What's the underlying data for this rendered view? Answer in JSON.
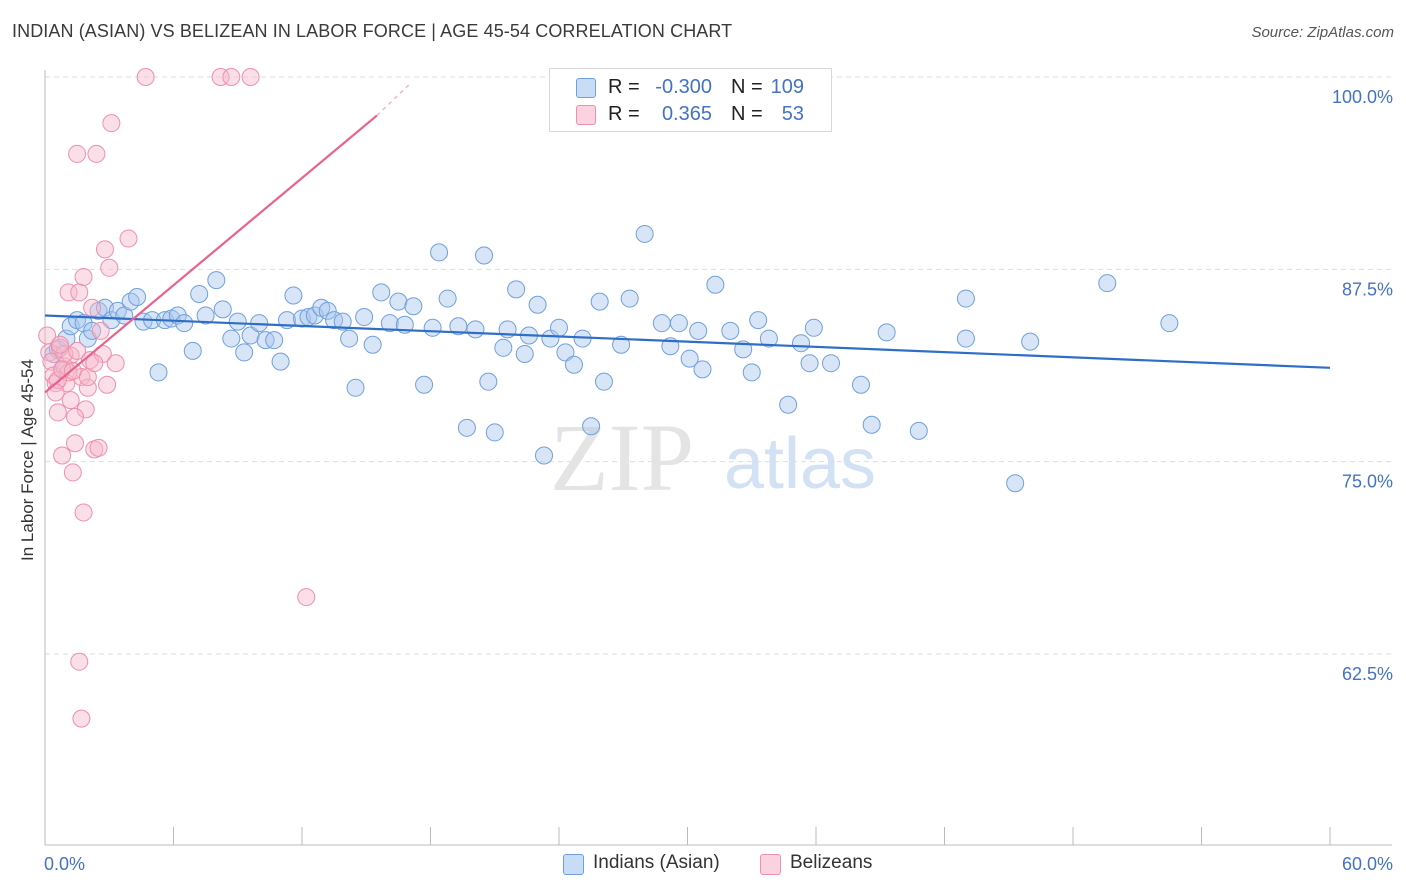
{
  "title": "INDIAN (ASIAN) VS BELIZEAN IN LABOR FORCE | AGE 45-54 CORRELATION CHART",
  "source": "Source: ZipAtlas.com",
  "watermark": {
    "zip": "ZIP",
    "atlas": "atlas"
  },
  "legend": {
    "rows": [
      {
        "r_label": "R =",
        "r_value": "-0.300",
        "n_label": "N =",
        "n_value": "109",
        "color": "#a9c6ee"
      },
      {
        "r_label": "R =",
        "r_value": "0.365",
        "n_label": "N =",
        "n_value": "53",
        "color": "#f6b8cb"
      }
    ]
  },
  "bottom_legend": [
    {
      "label": "Indians (Asian)",
      "color": "#a9c6ee"
    },
    {
      "label": "Belizeans",
      "color": "#f6b8cb"
    }
  ],
  "chart_data": {
    "type": "scatter",
    "title": "INDIAN (ASIAN) VS BELIZEAN IN LABOR FORCE | AGE 45-54 CORRELATION CHART",
    "xlabel": "",
    "ylabel": "In Labor Force | Age 45-54",
    "xlim": [
      0,
      60
    ],
    "ylim": [
      50,
      101
    ],
    "x_tick_labels": [
      "0.0%",
      "60.0%"
    ],
    "y_ticks": [
      62.5,
      75.0,
      87.5,
      100.0
    ],
    "y_tick_labels": [
      "62.5%",
      "75.0%",
      "87.5%",
      "100.0%"
    ],
    "grid": true,
    "legend_placement": "top-center",
    "series": [
      {
        "name": "Indians (Asian)",
        "color": "#6fa0dc",
        "fill": "#a9c6ee",
        "trend": {
          "x": [
            0,
            60
          ],
          "y": [
            84.5,
            81.1
          ],
          "color": "#2f6ec7"
        },
        "points": [
          [
            0.4,
            82.0
          ],
          [
            0.6,
            82.3
          ],
          [
            0.8,
            81.0
          ],
          [
            1.0,
            83.0
          ],
          [
            1.2,
            83.8
          ],
          [
            1.5,
            84.2
          ],
          [
            1.8,
            84.0
          ],
          [
            2.0,
            83.0
          ],
          [
            2.2,
            83.5
          ],
          [
            2.5,
            84.8
          ],
          [
            2.8,
            85.0
          ],
          [
            3.1,
            84.2
          ],
          [
            3.4,
            84.8
          ],
          [
            3.7,
            84.5
          ],
          [
            4.0,
            85.4
          ],
          [
            4.3,
            85.7
          ],
          [
            4.6,
            84.1
          ],
          [
            5.0,
            84.2
          ],
          [
            5.3,
            80.8
          ],
          [
            5.6,
            84.2
          ],
          [
            5.9,
            84.3
          ],
          [
            6.2,
            84.5
          ],
          [
            6.5,
            84.0
          ],
          [
            6.9,
            82.2
          ],
          [
            7.2,
            85.9
          ],
          [
            7.5,
            84.5
          ],
          [
            8.0,
            86.8
          ],
          [
            8.3,
            84.9
          ],
          [
            8.7,
            83.0
          ],
          [
            9.0,
            84.1
          ],
          [
            9.3,
            82.1
          ],
          [
            9.6,
            83.2
          ],
          [
            10.0,
            84.0
          ],
          [
            10.3,
            82.9
          ],
          [
            10.7,
            82.9
          ],
          [
            11.0,
            81.5
          ],
          [
            11.3,
            84.2
          ],
          [
            11.6,
            85.8
          ],
          [
            12.0,
            84.3
          ],
          [
            12.3,
            84.4
          ],
          [
            12.6,
            84.5
          ],
          [
            12.9,
            85.0
          ],
          [
            13.2,
            84.8
          ],
          [
            13.5,
            84.2
          ],
          [
            13.9,
            84.1
          ],
          [
            14.2,
            83.0
          ],
          [
            14.5,
            79.8
          ],
          [
            14.9,
            84.4
          ],
          [
            15.3,
            82.6
          ],
          [
            15.7,
            86.0
          ],
          [
            16.1,
            84.0
          ],
          [
            16.5,
            85.4
          ],
          [
            16.8,
            83.9
          ],
          [
            17.2,
            85.1
          ],
          [
            17.7,
            80.0
          ],
          [
            18.1,
            83.7
          ],
          [
            18.4,
            88.6
          ],
          [
            18.8,
            85.6
          ],
          [
            19.3,
            83.8
          ],
          [
            19.7,
            77.2
          ],
          [
            20.1,
            83.6
          ],
          [
            20.5,
            88.4
          ],
          [
            20.7,
            80.2
          ],
          [
            21.0,
            76.9
          ],
          [
            21.4,
            82.4
          ],
          [
            21.6,
            83.6
          ],
          [
            22.0,
            86.2
          ],
          [
            22.4,
            82.0
          ],
          [
            22.6,
            83.2
          ],
          [
            23.0,
            85.2
          ],
          [
            23.3,
            75.4
          ],
          [
            23.6,
            83.0
          ],
          [
            24.0,
            83.7
          ],
          [
            24.3,
            82.1
          ],
          [
            24.7,
            81.3
          ],
          [
            25.1,
            83.0
          ],
          [
            25.5,
            77.3
          ],
          [
            25.9,
            85.4
          ],
          [
            26.1,
            80.2
          ],
          [
            26.9,
            82.6
          ],
          [
            27.3,
            85.6
          ],
          [
            28.0,
            89.8
          ],
          [
            28.8,
            84.0
          ],
          [
            29.2,
            82.5
          ],
          [
            29.6,
            84.0
          ],
          [
            30.1,
            81.7
          ],
          [
            30.5,
            83.5
          ],
          [
            30.7,
            81.0
          ],
          [
            31.3,
            86.5
          ],
          [
            32.0,
            83.5
          ],
          [
            32.6,
            82.3
          ],
          [
            33.0,
            80.8
          ],
          [
            33.3,
            84.2
          ],
          [
            33.8,
            83.0
          ],
          [
            34.7,
            78.7
          ],
          [
            35.3,
            82.7
          ],
          [
            35.7,
            81.4
          ],
          [
            35.9,
            83.7
          ],
          [
            36.7,
            81.4
          ],
          [
            38.1,
            80.0
          ],
          [
            38.6,
            77.4
          ],
          [
            39.3,
            83.4
          ],
          [
            40.8,
            77.0
          ],
          [
            43.0,
            85.6
          ],
          [
            43.0,
            83.0
          ],
          [
            45.3,
            73.6
          ],
          [
            46.0,
            82.8
          ],
          [
            49.6,
            86.6
          ],
          [
            52.5,
            84.0
          ]
        ]
      },
      {
        "name": "Belizeans",
        "color": "#ee8fab",
        "fill": "#f6b8cb",
        "trend": {
          "x": [
            0,
            15.5
          ],
          "y": [
            79.5,
            97.5
          ],
          "color": "#e8638f",
          "dashed_extension_to": [
            17,
            99.5
          ]
        },
        "points": [
          [
            0.1,
            83.2
          ],
          [
            0.2,
            82.1
          ],
          [
            0.3,
            81.5
          ],
          [
            0.4,
            80.6
          ],
          [
            0.5,
            80.1
          ],
          [
            0.6,
            78.2
          ],
          [
            0.7,
            82.4
          ],
          [
            0.8,
            75.4
          ],
          [
            0.9,
            81.2
          ],
          [
            1.0,
            80.1
          ],
          [
            1.1,
            86.0
          ],
          [
            1.2,
            81.9
          ],
          [
            1.3,
            74.3
          ],
          [
            1.4,
            76.2
          ],
          [
            1.5,
            95.0
          ],
          [
            1.6,
            86.0
          ],
          [
            1.7,
            80.5
          ],
          [
            1.8,
            87.0
          ],
          [
            1.9,
            78.4
          ],
          [
            2.0,
            79.8
          ],
          [
            2.1,
            81.6
          ],
          [
            2.2,
            85.0
          ],
          [
            2.3,
            75.8
          ],
          [
            2.4,
            95.0
          ],
          [
            2.5,
            75.9
          ],
          [
            2.6,
            83.5
          ],
          [
            2.7,
            82.0
          ],
          [
            2.8,
            88.8
          ],
          [
            2.9,
            80.0
          ],
          [
            3.0,
            87.6
          ],
          [
            3.1,
            97.0
          ],
          [
            3.3,
            81.4
          ],
          [
            3.9,
            89.5
          ],
          [
            1.2,
            79.0
          ],
          [
            1.4,
            77.9
          ],
          [
            1.6,
            62.0
          ],
          [
            1.7,
            58.3
          ],
          [
            1.8,
            71.7
          ],
          [
            2.0,
            80.5
          ],
          [
            2.3,
            81.4
          ],
          [
            4.7,
            100.0
          ],
          [
            8.2,
            100.0
          ],
          [
            8.7,
            100.0
          ],
          [
            9.6,
            100.0
          ],
          [
            12.2,
            66.2
          ],
          [
            0.9,
            82.0
          ],
          [
            1.1,
            80.8
          ],
          [
            0.6,
            80.3
          ],
          [
            0.8,
            81.0
          ],
          [
            1.3,
            80.9
          ],
          [
            0.5,
            79.5
          ],
          [
            1.5,
            82.2
          ],
          [
            0.7,
            82.6
          ]
        ]
      }
    ]
  }
}
